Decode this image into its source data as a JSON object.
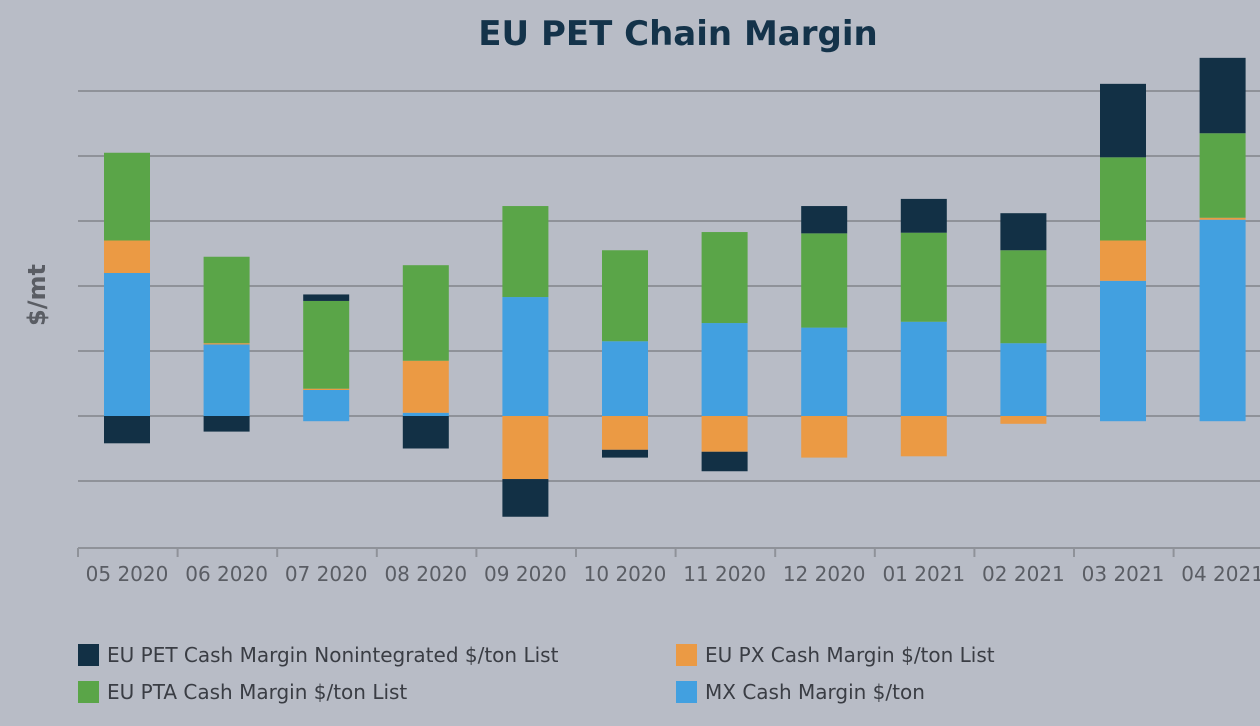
{
  "chart_data": {
    "type": "bar",
    "stacked": true,
    "title": "EU PET Chain Margin",
    "xlabel": "",
    "ylabel": "$/mt",
    "grid": true,
    "legend_position": "bottom",
    "categories": [
      "05 2020",
      "06 2020",
      "07 2020",
      "08 2020",
      "09 2020",
      "10 2020",
      "11 2020",
      "12 2020",
      "01 2021",
      "02 2021",
      "03 2021",
      "04 2021"
    ],
    "series": [
      {
        "name": "MX Cash Margin $/ton",
        "color": "#42a0e0",
        "values": [
          220,
          110,
          40,
          5,
          183,
          115,
          143,
          136,
          145,
          112,
          208,
          302
        ]
      },
      {
        "name": "EU PX Cash Margin $/ton List",
        "color": "#eb9a44",
        "values": [
          50,
          2,
          2,
          80,
          -97,
          -52,
          -55,
          -64,
          -62,
          -12,
          62,
          3
        ]
      },
      {
        "name": "EU PTA Cash Margin $/ton List",
        "color": "#5aa548",
        "values": [
          135,
          133,
          135,
          147,
          140,
          140,
          140,
          145,
          137,
          143,
          128,
          130
        ]
      },
      {
        "name": "EU PET Cash Margin Nonintegrated $/ton List",
        "color": "#123045",
        "values": [
          -42,
          -24,
          10,
          -50,
          -58,
          -12,
          -30,
          42,
          52,
          57,
          113,
          116
        ]
      }
    ],
    "below_zero_mx": [
      0,
      0,
      -8,
      0,
      0,
      0,
      0,
      0,
      0,
      0,
      -8,
      -8
    ],
    "legend_order": [
      3,
      1,
      2,
      0
    ]
  }
}
